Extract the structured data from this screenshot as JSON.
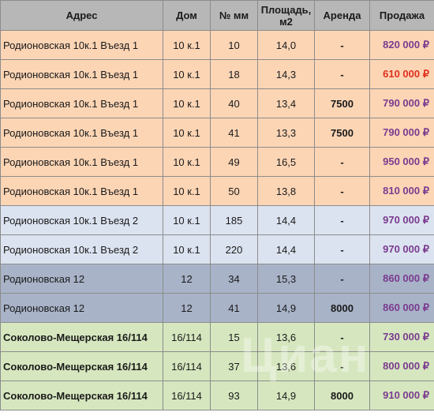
{
  "header": {
    "address": "Адрес",
    "house": "Дом",
    "mm": "№ мм",
    "area_line1": "Площадь,",
    "area_line2": "м2",
    "rent": "Аренда",
    "sale": "Продажа"
  },
  "rows": [
    {
      "address": "Родионовская 10к.1 Въезд 1",
      "house": "10 к.1",
      "mm": "10",
      "area": "14,0",
      "rent": "-",
      "sale": "820 000 ₽",
      "group": "orange"
    },
    {
      "address": "Родионовская 10к.1 Въезд 1",
      "house": "10 к.1",
      "mm": "18",
      "area": "14,3",
      "rent": "-",
      "sale": "610 000 ₽",
      "group": "orange",
      "sale_color": "red"
    },
    {
      "address": "Родионовская 10к.1 Въезд 1",
      "house": "10 к.1",
      "mm": "40",
      "area": "13,4",
      "rent": "7500",
      "sale": "790 000 ₽",
      "group": "orange"
    },
    {
      "address": "Родионовская 10к.1 Въезд 1",
      "house": "10 к.1",
      "mm": "41",
      "area": "13,3",
      "rent": "7500",
      "sale": "790 000 ₽",
      "group": "orange"
    },
    {
      "address": "Родионовская 10к.1 Въезд 1",
      "house": "10 к.1",
      "mm": "49",
      "area": "16,5",
      "rent": "-",
      "sale": "950 000 ₽",
      "group": "orange"
    },
    {
      "address": "Родионовская 10к.1 Въезд 1",
      "house": "10 к.1",
      "mm": "50",
      "area": "13,8",
      "rent": "-",
      "sale": "810 000 ₽",
      "group": "orange"
    },
    {
      "address": "Родионовская 10к.1 Въезд 2",
      "house": "10 к.1",
      "mm": "185",
      "area": "14,4",
      "rent": "-",
      "sale": "970 000 ₽",
      "group": "lavender"
    },
    {
      "address": "Родионовская 10к.1 Въезд 2",
      "house": "10 к.1",
      "mm": "220",
      "area": "14,4",
      "rent": "-",
      "sale": "970 000 ₽",
      "group": "lavender"
    },
    {
      "address": "Родионовская 12",
      "house": "12",
      "mm": "34",
      "area": "15,3",
      "rent": "-",
      "sale": "860 000 ₽",
      "group": "steel"
    },
    {
      "address": "Родионовская 12",
      "house": "12",
      "mm": "41",
      "area": "14,9",
      "rent": "8000",
      "sale": "860 000 ₽",
      "group": "steel"
    },
    {
      "address": "Соколово-Мещерская 16/114",
      "house": "16/114",
      "mm": "15",
      "area": "13,6",
      "rent": "-",
      "sale": "730 000 ₽",
      "group": "green"
    },
    {
      "address": "Соколово-Мещерская 16/114",
      "house": "16/114",
      "mm": "37",
      "area": "13,6",
      "rent": "-",
      "sale": "800 000 ₽",
      "group": "green"
    },
    {
      "address": "Соколово-Мещерская 16/114",
      "house": "16/114",
      "mm": "93",
      "area": "14,9",
      "rent": "8000",
      "sale": "910 000 ₽",
      "group": "green"
    }
  ],
  "colors": {
    "header_bg": "#b7b7b7",
    "group_orange": "#fcd5b5",
    "group_lavender": "#dce3f0",
    "group_steel": "#a8b3c8",
    "group_green": "#d6e7bf",
    "price_purple": "#7a3b8f",
    "price_red": "#e0301e"
  },
  "watermark": "Циан"
}
